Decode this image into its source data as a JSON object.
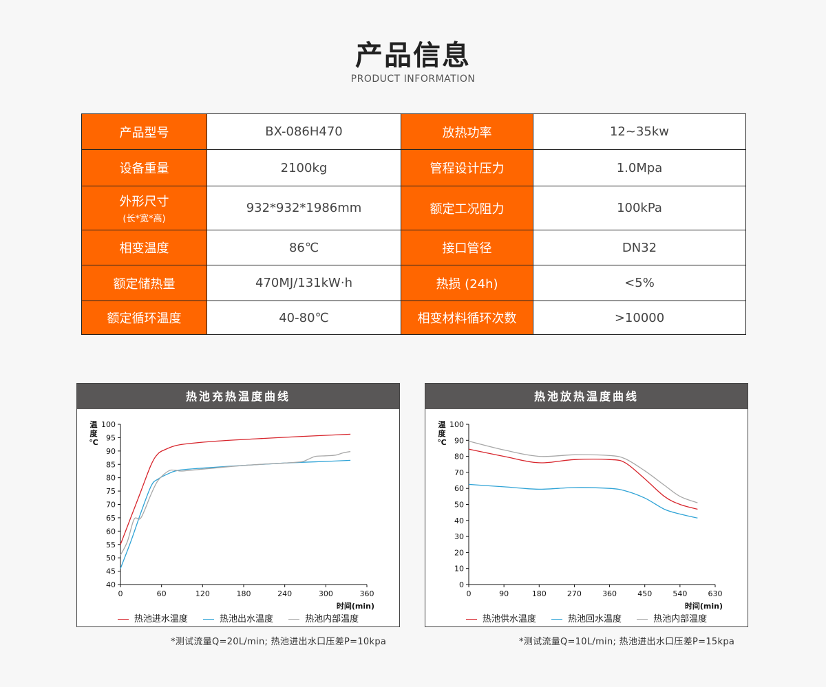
{
  "header": {
    "title": "产品信息",
    "subtitle": "PRODUCT INFORMATION"
  },
  "specs": [
    [
      {
        "label": "产品型号",
        "value": "BX-086H470"
      },
      {
        "label": "放热功率",
        "value": "12~35kw"
      }
    ],
    [
      {
        "label": "设备重量",
        "value": "2100kg"
      },
      {
        "label": "管程设计压力",
        "value": "1.0Mpa"
      }
    ],
    [
      {
        "label": "外形尺寸",
        "label_sub": "(长*宽*高)",
        "value": "932*932*1986mm"
      },
      {
        "label": "额定工况阻力",
        "value": "100kPa"
      }
    ],
    [
      {
        "label": "相变温度",
        "value": "86℃"
      },
      {
        "label": "接口管径",
        "value": "DN32"
      }
    ],
    [
      {
        "label": "额定储热量",
        "value": "470MJ/131kW·h"
      },
      {
        "label": "热损 (24h)",
        "value": "<5%"
      }
    ],
    [
      {
        "label": "额定循环温度",
        "value": "40-80℃"
      },
      {
        "label": "相变材料循环次数",
        "value": ">10000"
      }
    ]
  ],
  "colors": {
    "accent": "#ff6600",
    "panel_header": "#595757",
    "red": "#d7252c",
    "blue": "#2fa3d6",
    "gray": "#a8a8a8"
  },
  "chart_data": [
    {
      "type": "line",
      "title": "热池充热温度曲线",
      "ylabel": "温度℃",
      "xlabel": "时间(min)",
      "xlim": [
        0,
        360
      ],
      "ylim": [
        40,
        100
      ],
      "xticks": [
        0,
        60,
        120,
        180,
        240,
        300,
        360
      ],
      "yticks": [
        40,
        45,
        50,
        55,
        60,
        65,
        70,
        75,
        80,
        85,
        90,
        95,
        100
      ],
      "grid": false,
      "legend": "bottom",
      "series": [
        {
          "name": "热池进水温度",
          "color": "#d7252c",
          "x": [
            0,
            15,
            30,
            45,
            55,
            65,
            80,
            100,
            140,
            200,
            260,
            320,
            336
          ],
          "y": [
            55,
            65,
            75,
            85,
            89,
            90.5,
            92,
            92.8,
            93.7,
            94.6,
            95.4,
            96.1,
            96.3
          ]
        },
        {
          "name": "热池出水温度",
          "color": "#2fa3d6",
          "x": [
            0,
            15,
            30,
            45,
            55,
            70,
            85,
            120,
            180,
            240,
            300,
            336
          ],
          "y": [
            46,
            56,
            67,
            77,
            79.5,
            81.5,
            82.8,
            83.6,
            84.6,
            85.5,
            86.1,
            86.5
          ]
        },
        {
          "name": "热池内部温度",
          "color": "#a8a8a8",
          "x": [
            0,
            10,
            20,
            30,
            45,
            55,
            70,
            80,
            90,
            120,
            180,
            240,
            265,
            275,
            285,
            300,
            315,
            325,
            336
          ],
          "y": [
            51,
            56,
            64.5,
            65,
            74,
            79,
            82.5,
            82.8,
            82.5,
            83.2,
            84.6,
            85.5,
            86,
            87,
            88,
            88.2,
            88.5,
            89.3,
            89.8
          ]
        }
      ],
      "note": "*测试流量Q=20L/min; 热池进出水口压差P=10kpa"
    },
    {
      "type": "line",
      "title": "热池放热温度曲线",
      "ylabel": "温度℃",
      "xlabel": "时间(min)",
      "xlim": [
        0,
        630
      ],
      "ylim": [
        0,
        100
      ],
      "xticks": [
        0,
        90,
        180,
        270,
        360,
        450,
        540,
        630
      ],
      "yticks": [
        0,
        10,
        20,
        30,
        40,
        50,
        60,
        70,
        80,
        90,
        100
      ],
      "grid": false,
      "legend": "bottom",
      "series": [
        {
          "name": "热池供水温度",
          "color": "#d7252c",
          "x": [
            0,
            90,
            180,
            270,
            360,
            400,
            450,
            500,
            540,
            585
          ],
          "y": [
            84.5,
            80,
            76,
            78,
            78,
            76,
            66,
            55,
            50,
            47
          ]
        },
        {
          "name": "热池回水温度",
          "color": "#2fa3d6",
          "x": [
            0,
            90,
            180,
            270,
            360,
            400,
            450,
            500,
            540,
            585
          ],
          "y": [
            62.5,
            61,
            59.5,
            60.5,
            60,
            58.5,
            54,
            47,
            44,
            41.5
          ]
        },
        {
          "name": "热池内部温度",
          "color": "#a8a8a8",
          "x": [
            0,
            90,
            180,
            270,
            360,
            400,
            450,
            500,
            540,
            585
          ],
          "y": [
            89.5,
            84,
            80,
            81,
            80.5,
            78.5,
            71,
            62,
            55,
            51
          ]
        }
      ],
      "note": "*测试流量Q=10L/min; 热池进出水口压差P=15kpa"
    }
  ]
}
